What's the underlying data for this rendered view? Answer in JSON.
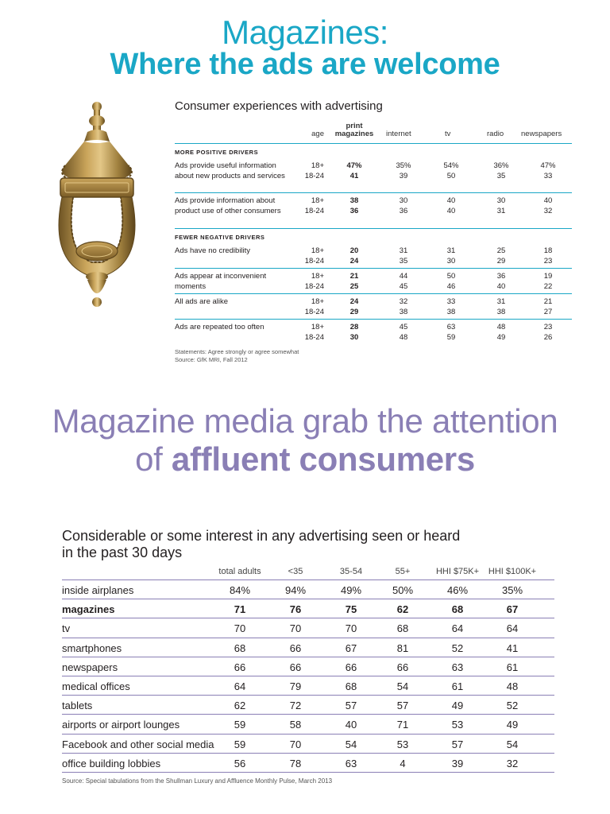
{
  "header": {
    "line1": "Magazines:",
    "line2": "Where the ads are welcome"
  },
  "colors": {
    "teal": "#1aa7c6",
    "purple": "#8a7fb5",
    "brass": "#b08a3e"
  },
  "illustration": {
    "icon": "door-knocker-icon"
  },
  "table1": {
    "title": "Consumer experiences with advertising",
    "columns": {
      "age": "age",
      "print_line1": "print",
      "print_line2": "magazines",
      "internet": "internet",
      "tv": "tv",
      "radio": "radio",
      "newspapers": "newspapers"
    },
    "section_positive": "MORE POSITIVE DRIVERS",
    "section_negative": "FEWER NEGATIVE DRIVERS",
    "rows": [
      {
        "label": "Ads provide useful information about new products and services",
        "ages": [
          "18+",
          "18-24"
        ],
        "print": [
          "47%",
          "41"
        ],
        "internet": [
          "35%",
          "39"
        ],
        "tv": [
          "54%",
          "50"
        ],
        "radio": [
          "36%",
          "35"
        ],
        "newspapers": [
          "47%",
          "33"
        ]
      },
      {
        "label": "Ads provide information about product use of other consumers",
        "ages": [
          "18+",
          "18-24"
        ],
        "print": [
          "38",
          "36"
        ],
        "internet": [
          "30",
          "36"
        ],
        "tv": [
          "40",
          "40"
        ],
        "radio": [
          "30",
          "31"
        ],
        "newspapers": [
          "40",
          "32"
        ]
      },
      {
        "label": "Ads have no credibility",
        "ages": [
          "18+",
          "18-24"
        ],
        "print": [
          "20",
          "24"
        ],
        "internet": [
          "31",
          "35"
        ],
        "tv": [
          "31",
          "30"
        ],
        "radio": [
          "25",
          "29"
        ],
        "newspapers": [
          "18",
          "23"
        ]
      },
      {
        "label": "Ads appear at inconvenient moments",
        "ages": [
          "18+",
          "18-24"
        ],
        "print": [
          "21",
          "25"
        ],
        "internet": [
          "44",
          "45"
        ],
        "tv": [
          "50",
          "46"
        ],
        "radio": [
          "36",
          "40"
        ],
        "newspapers": [
          "19",
          "22"
        ]
      },
      {
        "label": "All ads are alike",
        "ages": [
          "18+",
          "18-24"
        ],
        "print": [
          "24",
          "29"
        ],
        "internet": [
          "32",
          "38"
        ],
        "tv": [
          "33",
          "38"
        ],
        "radio": [
          "31",
          "38"
        ],
        "newspapers": [
          "21",
          "27"
        ]
      },
      {
        "label": "Ads are repeated too often",
        "ages": [
          "18+",
          "18-24"
        ],
        "print": [
          "28",
          "30"
        ],
        "internet": [
          "45",
          "48"
        ],
        "tv": [
          "63",
          "59"
        ],
        "radio": [
          "48",
          "49"
        ],
        "newspapers": [
          "23",
          "26"
        ]
      }
    ],
    "note_line1": "Statements: Agree strongly or agree somewhat",
    "note_line2": "Source: GfK MRI, Fall 2012"
  },
  "headline2": {
    "line1": "Magazine media grab the attention",
    "line2_prefix": "of ",
    "line2_bold": "affluent consumers"
  },
  "table2": {
    "title_line1": "Considerable or some interest in any advertising seen or heard",
    "title_line2": "in the past 30 days",
    "columns": [
      "total adults",
      "<35",
      "35-54",
      "55+",
      "HHI $75K+",
      "HHI $100K+"
    ],
    "rows": [
      {
        "label": "inside airplanes",
        "values": [
          "84%",
          "94%",
          "49%",
          "50%",
          "46%",
          "35%"
        ]
      },
      {
        "label": "magazines",
        "values": [
          "71",
          "76",
          "75",
          "62",
          "68",
          "67"
        ]
      },
      {
        "label": "tv",
        "values": [
          "70",
          "70",
          "70",
          "68",
          "64",
          "64"
        ]
      },
      {
        "label": "smartphones",
        "values": [
          "68",
          "66",
          "67",
          "81",
          "52",
          "41"
        ]
      },
      {
        "label": "newspapers",
        "values": [
          "66",
          "66",
          "66",
          "66",
          "63",
          "61"
        ]
      },
      {
        "label": "medical offices",
        "values": [
          "64",
          "79",
          "68",
          "54",
          "61",
          "48"
        ]
      },
      {
        "label": "tablets",
        "values": [
          "62",
          "72",
          "57",
          "57",
          "49",
          "52"
        ]
      },
      {
        "label": "airports or airport lounges",
        "values": [
          "59",
          "58",
          "40",
          "71",
          "53",
          "49"
        ]
      },
      {
        "label": "Facebook and other social media",
        "values": [
          "59",
          "70",
          "54",
          "53",
          "57",
          "54"
        ]
      },
      {
        "label": "office building lobbies",
        "values": [
          "56",
          "78",
          "63",
          "4",
          "39",
          "32"
        ]
      }
    ],
    "source": "Source: Special tabulations from the Shullman Luxury and Affluence Monthly Pulse, March 2013"
  }
}
